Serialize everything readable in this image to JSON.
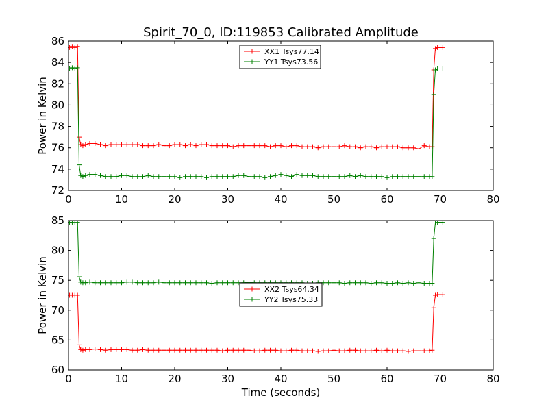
{
  "figure": {
    "title": "Spirit_70_0, ID:119853 Calibrated Amplitude"
  },
  "chart_data": [
    {
      "type": "line",
      "title": "Spirit_70_0, ID:119853 Calibrated Amplitude",
      "xlabel": "",
      "ylabel": "Power in Kelvin",
      "xlim": [
        0,
        80
      ],
      "ylim": [
        72,
        86
      ],
      "xticks": [
        0,
        10,
        20,
        30,
        40,
        50,
        60,
        70,
        80
      ],
      "yticks": [
        72,
        74,
        76,
        78,
        80,
        82,
        84,
        86
      ],
      "grid": false,
      "legend_position": "top-center",
      "series": [
        {
          "name": "XX1 Tsys77.14",
          "color": "#ff0000",
          "marker": "+",
          "x": [
            0.2,
            0.7,
            1.2,
            1.7,
            2.0,
            2.3,
            2.7,
            3.2,
            4.0,
            5.0,
            6.0,
            7.0,
            8.0,
            9.0,
            10.0,
            11.0,
            12.0,
            13.0,
            14.0,
            15.0,
            16.0,
            17.0,
            18.0,
            19.0,
            20.0,
            21.0,
            22.0,
            23.0,
            24.0,
            25.0,
            26.0,
            27.0,
            28.0,
            29.0,
            30.0,
            31.0,
            32.0,
            33.0,
            34.0,
            35.0,
            36.0,
            37.0,
            38.0,
            39.0,
            40.0,
            41.0,
            42.0,
            43.0,
            44.0,
            45.0,
            46.0,
            47.0,
            48.0,
            49.0,
            50.0,
            51.0,
            52.0,
            53.0,
            54.0,
            55.0,
            56.0,
            57.0,
            58.0,
            59.0,
            60.0,
            61.0,
            62.0,
            63.0,
            64.0,
            65.0,
            66.0,
            67.0,
            68.0,
            68.5,
            68.8,
            69.1,
            69.5,
            70.0,
            70.5
          ],
          "y": [
            85.4,
            85.5,
            85.4,
            85.5,
            77.0,
            76.3,
            76.2,
            76.3,
            76.4,
            76.4,
            76.3,
            76.2,
            76.3,
            76.3,
            76.3,
            76.3,
            76.3,
            76.3,
            76.2,
            76.2,
            76.2,
            76.3,
            76.2,
            76.2,
            76.3,
            76.3,
            76.2,
            76.3,
            76.2,
            76.3,
            76.3,
            76.2,
            76.2,
            76.2,
            76.2,
            76.1,
            76.2,
            76.2,
            76.2,
            76.2,
            76.2,
            76.2,
            76.1,
            76.2,
            76.2,
            76.1,
            76.2,
            76.2,
            76.1,
            76.1,
            76.1,
            76.0,
            76.1,
            76.1,
            76.1,
            76.1,
            76.2,
            76.1,
            76.1,
            76.0,
            76.1,
            76.1,
            76.0,
            76.1,
            76.1,
            76.1,
            76.1,
            76.0,
            76.0,
            76.0,
            75.9,
            76.2,
            76.1,
            76.1,
            83.3,
            85.3,
            85.4,
            85.4,
            85.4
          ]
        },
        {
          "name": "YY1 Tsys73.56",
          "color": "#008000",
          "marker": "+",
          "x": [
            0.2,
            0.7,
            1.2,
            1.7,
            2.0,
            2.3,
            2.7,
            3.2,
            4.0,
            5.0,
            6.0,
            7.0,
            8.0,
            9.0,
            10.0,
            11.0,
            12.0,
            13.0,
            14.0,
            15.0,
            16.0,
            17.0,
            18.0,
            19.0,
            20.0,
            21.0,
            22.0,
            23.0,
            24.0,
            25.0,
            26.0,
            27.0,
            28.0,
            29.0,
            30.0,
            31.0,
            32.0,
            33.0,
            34.0,
            35.0,
            36.0,
            37.0,
            38.0,
            39.0,
            40.0,
            41.0,
            42.0,
            43.0,
            44.0,
            45.0,
            46.0,
            47.0,
            48.0,
            49.0,
            50.0,
            51.0,
            52.0,
            53.0,
            54.0,
            55.0,
            56.0,
            57.0,
            58.0,
            59.0,
            60.0,
            61.0,
            62.0,
            63.0,
            64.0,
            65.0,
            66.0,
            67.0,
            68.0,
            68.5,
            68.8,
            69.1,
            69.5,
            70.0,
            70.5
          ],
          "y": [
            83.4,
            83.5,
            83.4,
            83.5,
            74.4,
            73.4,
            73.3,
            73.4,
            73.5,
            73.5,
            73.4,
            73.3,
            73.3,
            73.3,
            73.4,
            73.4,
            73.3,
            73.3,
            73.3,
            73.4,
            73.3,
            73.3,
            73.3,
            73.3,
            73.3,
            73.2,
            73.3,
            73.3,
            73.3,
            73.3,
            73.2,
            73.3,
            73.3,
            73.3,
            73.3,
            73.3,
            73.4,
            73.4,
            73.3,
            73.3,
            73.3,
            73.2,
            73.3,
            73.4,
            73.5,
            73.4,
            73.3,
            73.5,
            73.4,
            73.4,
            73.4,
            73.3,
            73.3,
            73.3,
            73.3,
            73.3,
            73.3,
            73.4,
            73.3,
            73.4,
            73.3,
            73.3,
            73.3,
            73.3,
            73.2,
            73.3,
            73.3,
            73.3,
            73.3,
            73.3,
            73.3,
            73.3,
            73.3,
            73.3,
            81.0,
            83.3,
            83.4,
            83.4,
            83.4
          ]
        }
      ]
    },
    {
      "type": "line",
      "title": "",
      "xlabel": "Time (seconds)",
      "ylabel": "Power in Kelvin",
      "xlim": [
        0,
        80
      ],
      "ylim": [
        60,
        85
      ],
      "xticks": [
        0,
        10,
        20,
        30,
        40,
        50,
        60,
        70,
        80
      ],
      "yticks": [
        60,
        65,
        70,
        75,
        80,
        85
      ],
      "grid": false,
      "legend_position": "center",
      "series": [
        {
          "name": "XX2 Tsys64.34",
          "color": "#ff0000",
          "marker": "+",
          "x": [
            0.2,
            0.7,
            1.2,
            1.7,
            2.0,
            2.3,
            2.7,
            3.2,
            4.0,
            5.0,
            6.0,
            7.0,
            8.0,
            9.0,
            10.0,
            11.0,
            12.0,
            13.0,
            14.0,
            15.0,
            16.0,
            17.0,
            18.0,
            19.0,
            20.0,
            21.0,
            22.0,
            23.0,
            24.0,
            25.0,
            26.0,
            27.0,
            28.0,
            29.0,
            30.0,
            31.0,
            32.0,
            33.0,
            34.0,
            35.0,
            36.0,
            37.0,
            38.0,
            39.0,
            40.0,
            41.0,
            42.0,
            43.0,
            44.0,
            45.0,
            46.0,
            47.0,
            48.0,
            49.0,
            50.0,
            51.0,
            52.0,
            53.0,
            54.0,
            55.0,
            56.0,
            57.0,
            58.0,
            59.0,
            60.0,
            61.0,
            62.0,
            63.0,
            64.0,
            65.0,
            66.0,
            67.0,
            68.0,
            68.5,
            68.8,
            69.1,
            69.5,
            70.0,
            70.5
          ],
          "y": [
            72.5,
            72.5,
            72.5,
            72.5,
            64.2,
            63.4,
            63.3,
            63.4,
            63.4,
            63.5,
            63.4,
            63.3,
            63.4,
            63.4,
            63.4,
            63.4,
            63.3,
            63.3,
            63.4,
            63.3,
            63.3,
            63.3,
            63.3,
            63.3,
            63.3,
            63.3,
            63.3,
            63.3,
            63.3,
            63.3,
            63.3,
            63.3,
            63.3,
            63.2,
            63.3,
            63.3,
            63.3,
            63.3,
            63.3,
            63.2,
            63.2,
            63.3,
            63.3,
            63.3,
            63.2,
            63.2,
            63.3,
            63.3,
            63.2,
            63.2,
            63.2,
            63.1,
            63.2,
            63.2,
            63.3,
            63.2,
            63.2,
            63.3,
            63.3,
            63.2,
            63.2,
            63.2,
            63.3,
            63.2,
            63.3,
            63.2,
            63.2,
            63.2,
            63.1,
            63.2,
            63.2,
            63.2,
            63.2,
            63.3,
            70.4,
            72.5,
            72.6,
            72.6,
            72.6
          ]
        },
        {
          "name": "YY2 Tsys75.33",
          "color": "#008000",
          "marker": "+",
          "x": [
            0.2,
            0.7,
            1.2,
            1.7,
            2.0,
            2.3,
            2.7,
            3.2,
            4.0,
            5.0,
            6.0,
            7.0,
            8.0,
            9.0,
            10.0,
            11.0,
            12.0,
            13.0,
            14.0,
            15.0,
            16.0,
            17.0,
            18.0,
            19.0,
            20.0,
            21.0,
            22.0,
            23.0,
            24.0,
            25.0,
            26.0,
            27.0,
            28.0,
            29.0,
            30.0,
            31.0,
            32.0,
            33.0,
            34.0,
            35.0,
            36.0,
            37.0,
            38.0,
            39.0,
            40.0,
            41.0,
            42.0,
            43.0,
            44.0,
            45.0,
            46.0,
            47.0,
            48.0,
            49.0,
            50.0,
            51.0,
            52.0,
            53.0,
            54.0,
            55.0,
            56.0,
            57.0,
            58.0,
            59.0,
            60.0,
            61.0,
            62.0,
            63.0,
            64.0,
            65.0,
            66.0,
            67.0,
            68.0,
            68.5,
            68.8,
            69.1,
            69.5,
            70.0,
            70.5
          ],
          "y": [
            84.7,
            84.7,
            84.6,
            84.7,
            75.6,
            74.7,
            74.6,
            74.6,
            74.7,
            74.6,
            74.6,
            74.6,
            74.6,
            74.6,
            74.6,
            74.7,
            74.7,
            74.6,
            74.6,
            74.6,
            74.6,
            74.7,
            74.6,
            74.6,
            74.6,
            74.6,
            74.6,
            74.6,
            74.6,
            74.6,
            74.6,
            74.5,
            74.6,
            74.6,
            74.6,
            74.6,
            74.6,
            74.6,
            74.7,
            74.6,
            74.6,
            74.6,
            74.6,
            74.6,
            74.6,
            74.6,
            74.6,
            74.6,
            74.6,
            74.5,
            74.5,
            74.6,
            74.6,
            74.6,
            74.6,
            74.6,
            74.5,
            74.6,
            74.6,
            74.6,
            74.6,
            74.5,
            74.6,
            74.6,
            74.5,
            74.5,
            74.6,
            74.5,
            74.6,
            74.5,
            74.6,
            74.5,
            74.5,
            74.5,
            82.0,
            84.6,
            84.7,
            84.7,
            84.7
          ]
        }
      ]
    }
  ]
}
